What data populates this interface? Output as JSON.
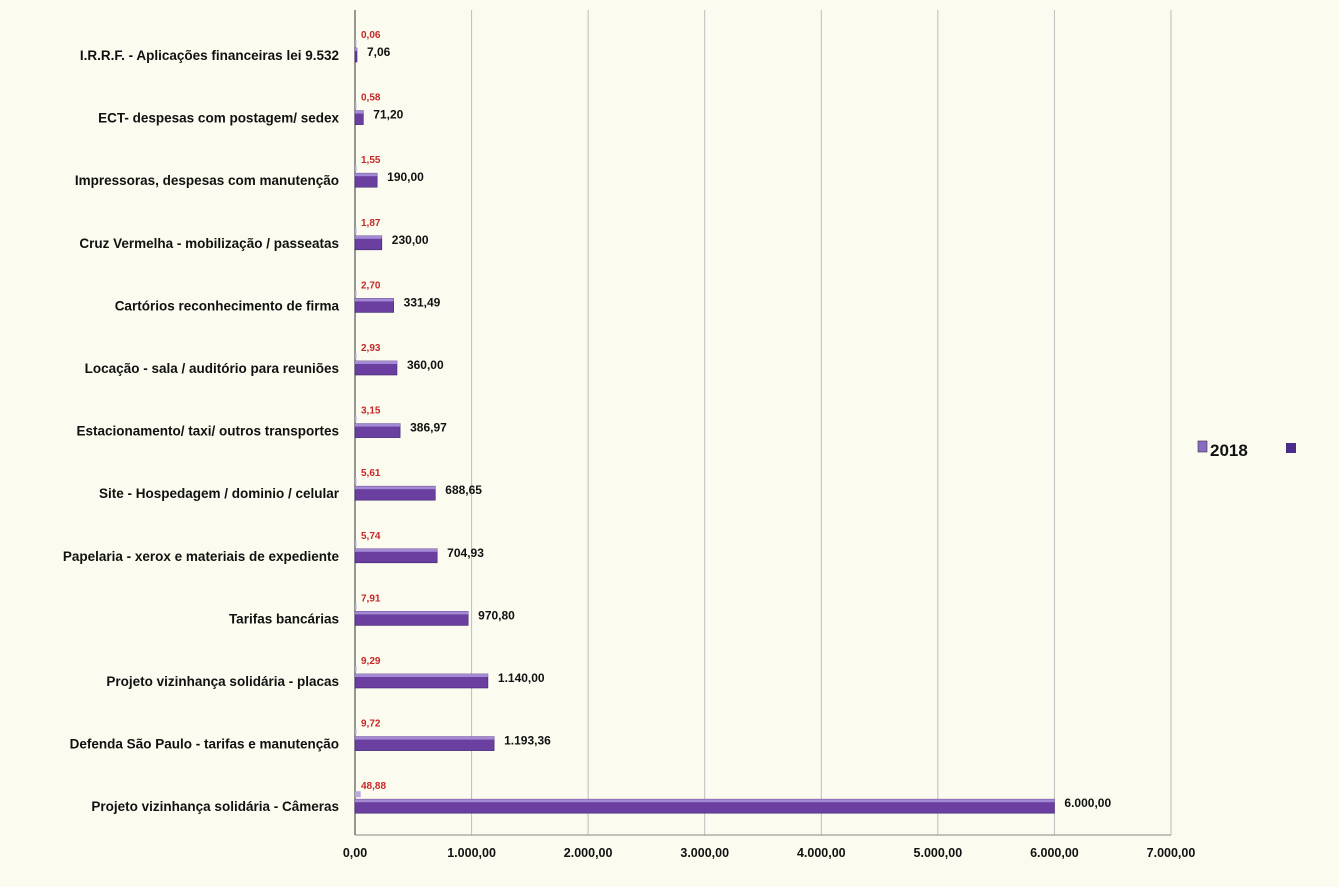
{
  "chart_data": {
    "type": "bar",
    "orientation": "horizontal",
    "categories": [
      "I.R.R.F. - Aplicações financeiras lei 9.532",
      "ECT- despesas com postagem/ sedex",
      "Impressoras, despesas com manutenção",
      "Cruz Vermelha - mobilização / passeatas",
      "Cartórios reconhecimento de firma",
      "Locação - sala / auditório para reuniões",
      "Estacionamento/ taxi/ outros transportes",
      "Site - Hospedagem / dominio / celular",
      "Papelaria - xerox e materiais de expediente",
      "Tarifas bancárias",
      "Projeto vizinhança solidária - placas",
      "Defenda São Paulo - tarifas e manutenção",
      "Projeto vizinhança solidária - Câmeras"
    ],
    "series": [
      {
        "name": "2018",
        "color": "#6a3fa0",
        "values": [
          7.06,
          71.2,
          190.0,
          230.0,
          331.49,
          360.0,
          386.97,
          688.65,
          704.93,
          970.8,
          1140.0,
          1193.36,
          6000.0
        ],
        "value_labels": [
          "7,06",
          "71,20",
          "190,00",
          "230,00",
          "331,49",
          "360,00",
          "386,97",
          "688,65",
          "704,93",
          "970,80",
          "1.140,00",
          "1.193,36",
          "6.000,00"
        ]
      },
      {
        "color": "#b9a8e0",
        "values": [
          0.06,
          0.58,
          1.55,
          1.87,
          2.7,
          2.93,
          3.15,
          5.61,
          5.74,
          7.91,
          9.29,
          9.72,
          48.88
        ],
        "value_labels": [
          "0,06",
          "0,58",
          "1,55",
          "1,87",
          "2,70",
          "2,93",
          "3,15",
          "5,61",
          "5,74",
          "7,91",
          "9,29",
          "9,72",
          "48,88"
        ]
      }
    ],
    "x_ticks": [
      0,
      1000,
      2000,
      3000,
      4000,
      5000,
      6000,
      7000
    ],
    "x_tick_labels": [
      "0,00",
      "1.000,00",
      "2.000,00",
      "3.000,00",
      "4.000,00",
      "5.000,00",
      "6.000,00",
      "7.000,00"
    ],
    "xlim": [
      0,
      7000
    ],
    "grid": true,
    "legend": {
      "placement": "right",
      "label": "2018"
    },
    "colors": {
      "bar": "#6a3fa0",
      "bar_light": "#b9a8e0",
      "percent_text": "#c62828",
      "grid": "#bdbdbd",
      "background": "#fbfbef"
    }
  }
}
